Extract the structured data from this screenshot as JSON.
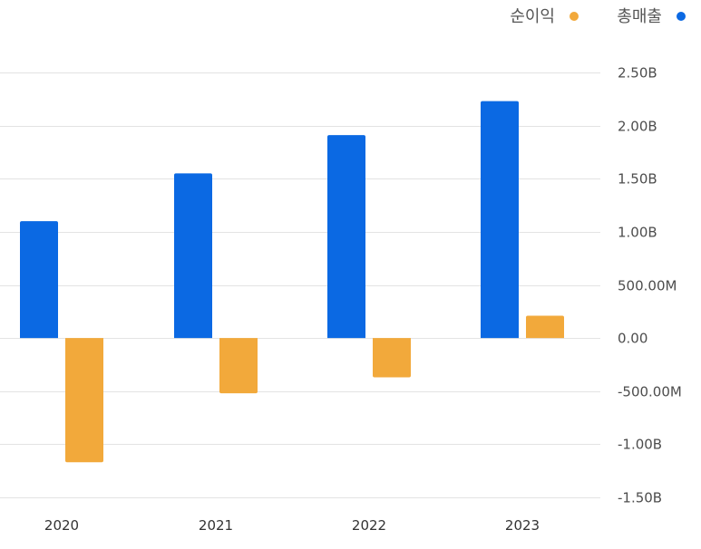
{
  "chart_data": {
    "type": "bar",
    "categories": [
      "2020",
      "2021",
      "2022",
      "2023"
    ],
    "series": [
      {
        "name": "총매출",
        "color": "#0b69e3",
        "values": [
          1100000000,
          1550000000,
          1910000000,
          2230000000
        ]
      },
      {
        "name": "순이익",
        "color": "#f2a93b",
        "values": [
          -1170000000,
          -520000000,
          -370000000,
          210000000
        ]
      }
    ],
    "ylim": [
      -1500000000,
      2500000000
    ],
    "y_ticks": [
      2500000000,
      2000000000,
      1500000000,
      1000000000,
      500000000,
      0,
      -500000000,
      -1000000000,
      -1500000000
    ],
    "y_tick_labels": [
      "2.50B",
      "2.00B",
      "1.50B",
      "1.00B",
      "500.00M",
      "0.00",
      "-500.00M",
      "-1.00B",
      "-1.50B"
    ],
    "grid": true,
    "legend_position": "top-right",
    "legend_order": [
      "순이익",
      "총매출"
    ],
    "title": "",
    "xlabel": "",
    "ylabel": ""
  }
}
